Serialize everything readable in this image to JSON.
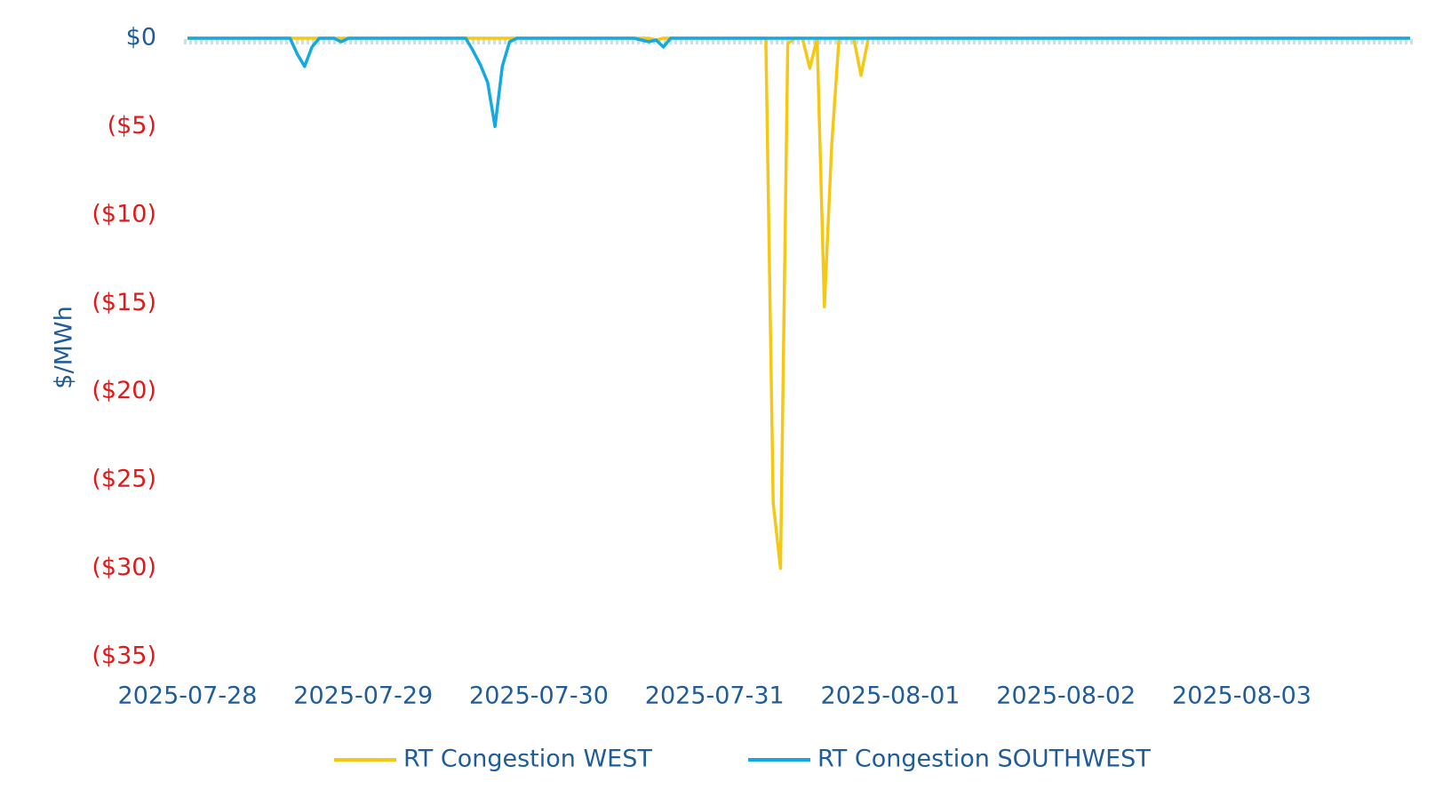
{
  "chart_data": {
    "type": "line",
    "y_label": "$/MWh",
    "categories": [
      "2025-07-28",
      null,
      null,
      null,
      null,
      null,
      null,
      null,
      null,
      null,
      null,
      null,
      null,
      null,
      null,
      null,
      null,
      null,
      null,
      null,
      null,
      null,
      null,
      null,
      "2025-07-29",
      null,
      null,
      null,
      null,
      null,
      null,
      null,
      null,
      null,
      null,
      null,
      null,
      null,
      null,
      null,
      null,
      null,
      null,
      null,
      null,
      null,
      null,
      null,
      "2025-07-30",
      null,
      null,
      null,
      null,
      null,
      null,
      null,
      null,
      null,
      null,
      null,
      null,
      null,
      null,
      null,
      null,
      null,
      null,
      null,
      null,
      null,
      null,
      null,
      "2025-07-31",
      null,
      null,
      null,
      null,
      null,
      null,
      null,
      null,
      null,
      null,
      null,
      null,
      null,
      null,
      null,
      null,
      null,
      null,
      null,
      null,
      null,
      null,
      null,
      "2025-08-01",
      null,
      null,
      null,
      null,
      null,
      null,
      null,
      null,
      null,
      null,
      null,
      null,
      null,
      null,
      null,
      null,
      null,
      null,
      null,
      null,
      null,
      null,
      null,
      "2025-08-02",
      null,
      null,
      null,
      null,
      null,
      null,
      null,
      null,
      null,
      null,
      null,
      null,
      null,
      null,
      null,
      null,
      null,
      null,
      null,
      null,
      null,
      null,
      null,
      "2025-08-03",
      null,
      null,
      null,
      null,
      null,
      null,
      null,
      null,
      null,
      null,
      null,
      null,
      null,
      null,
      null,
      null,
      null,
      null,
      null,
      null,
      null,
      null,
      null
    ],
    "series": [
      {
        "name": "RT Congestion WEST",
        "color": "#f5c816",
        "values": [
          0,
          0,
          0,
          0,
          0,
          0,
          0,
          0,
          0,
          0,
          0,
          0,
          0,
          0,
          0,
          0,
          0,
          0,
          0,
          0,
          0,
          0,
          0,
          0,
          0,
          0,
          0,
          0,
          0,
          0,
          0,
          0,
          0,
          0,
          0,
          0,
          0,
          0,
          0,
          0,
          0,
          0,
          0,
          0,
          0,
          0,
          0,
          0,
          0,
          0,
          0,
          0,
          0,
          0,
          0,
          0,
          0,
          0,
          0,
          0,
          0,
          0,
          0,
          0,
          -0.1,
          0,
          0,
          0,
          0,
          0,
          0,
          0,
          0,
          0,
          0,
          0,
          0,
          0,
          0,
          0,
          -26.3,
          -30,
          -0.3,
          0,
          0,
          -1.7,
          0,
          -15.2,
          -6,
          0,
          0,
          0,
          -2.1,
          0,
          0,
          0,
          0,
          0,
          0,
          0,
          0,
          0,
          0,
          0,
          0,
          0,
          0,
          0,
          0,
          0,
          0,
          0,
          0,
          0,
          0,
          0,
          0,
          0,
          0,
          0,
          0,
          0,
          0,
          0,
          0,
          0,
          0,
          0,
          0,
          0,
          0,
          0,
          0,
          0,
          0,
          0,
          0,
          0,
          0,
          0,
          0,
          0,
          0,
          0,
          0,
          0,
          0,
          0,
          0,
          0,
          0,
          0,
          0,
          0,
          0,
          0,
          0,
          0,
          0,
          0,
          0,
          0,
          0,
          0,
          0,
          0,
          0,
          0
        ]
      },
      {
        "name": "RT Congestion SOUTHWEST",
        "color": "#14a9e1",
        "values": [
          0,
          0,
          0,
          0,
          0,
          0,
          0,
          0,
          0,
          0,
          0,
          0,
          0,
          0,
          0,
          -0.9,
          -1.6,
          -0.5,
          0,
          0,
          0,
          -0.2,
          0,
          0,
          0,
          0,
          0,
          0,
          0,
          0,
          0,
          0,
          0,
          0,
          0,
          0,
          0,
          0,
          0,
          -0.7,
          -1.5,
          -2.5,
          -5,
          -1.6,
          -0.2,
          0,
          0,
          0,
          0,
          0,
          0,
          0,
          0,
          0,
          0,
          0,
          0,
          0,
          0,
          0,
          0,
          0,
          -0.1,
          -0.2,
          -0.1,
          -0.5,
          0,
          0,
          0,
          0,
          0,
          0,
          0,
          0,
          0,
          0,
          0,
          0,
          0,
          0,
          0,
          0,
          0,
          0,
          0,
          0,
          0,
          0,
          0,
          0,
          0,
          0,
          0,
          0,
          0,
          0,
          0,
          0,
          0,
          0,
          0,
          0,
          0,
          0,
          0,
          0,
          0,
          0,
          0,
          0,
          0,
          0,
          0,
          0,
          0,
          0,
          0,
          0,
          0,
          0,
          0,
          0,
          0,
          0,
          0,
          0,
          0,
          0,
          0,
          0,
          0,
          0,
          0,
          0,
          0,
          0,
          0,
          0,
          0,
          0,
          0,
          0,
          0,
          0,
          0,
          0,
          0,
          0,
          0,
          0,
          0,
          0,
          0,
          0,
          0,
          0,
          0,
          0,
          0,
          0,
          0,
          0,
          0,
          0,
          0,
          0,
          0,
          0
        ]
      }
    ],
    "ylim": [
      -35,
      0
    ],
    "yticks": [
      {
        "value": 0,
        "label": "$0"
      },
      {
        "value": -5,
        "label": "($5)"
      },
      {
        "value": -10,
        "label": "($10)"
      },
      {
        "value": -15,
        "label": "($15)"
      },
      {
        "value": -20,
        "label": "($20)"
      },
      {
        "value": -25,
        "label": "($25)"
      },
      {
        "value": -30,
        "label": "($30)"
      },
      {
        "value": -35,
        "label": "($35)"
      }
    ],
    "legend": "bottom"
  }
}
